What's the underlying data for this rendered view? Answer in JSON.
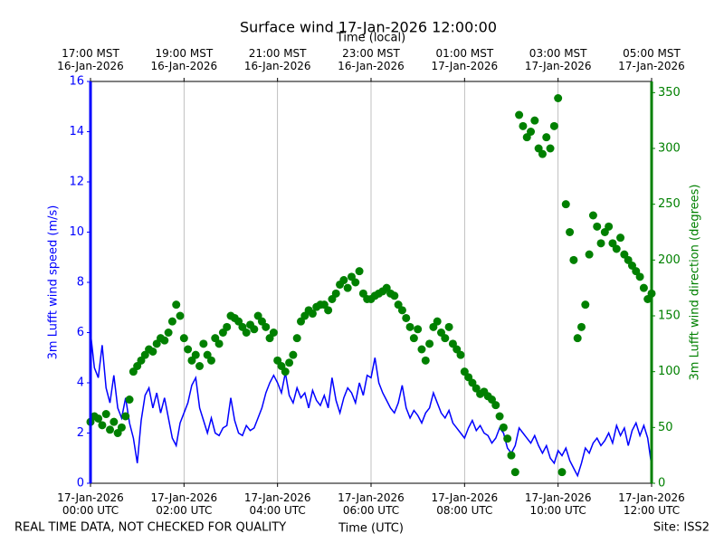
{
  "chart_data": {
    "type": "line",
    "title": "Surface wind 17-Jan-2026 12:00:00",
    "x_label": "Time (UTC)",
    "x2_label": "Time (local)",
    "y_label": "3m Lufft wind speed (m/s)",
    "y2_label": "3m Lufft wind direction (degrees)",
    "footer_left": "REAL TIME DATA, NOT CHECKED FOR QUALITY",
    "footer_right": "Site: ISS2",
    "grid": "x",
    "xlim": [
      "2026-01-17T00:00",
      "2026-01-17T12:00"
    ],
    "xticks": [
      {
        "value": "2026-01-17T00:00",
        "label": "17-Jan-2026\n00:00 UTC"
      },
      {
        "value": "2026-01-17T02:00",
        "label": "17-Jan-2026\n02:00 UTC"
      },
      {
        "value": "2026-01-17T04:00",
        "label": "17-Jan-2026\n04:00 UTC"
      },
      {
        "value": "2026-01-17T06:00",
        "label": "17-Jan-2026\n06:00 UTC"
      },
      {
        "value": "2026-01-17T08:00",
        "label": "17-Jan-2026\n08:00 UTC"
      },
      {
        "value": "2026-01-17T10:00",
        "label": "17-Jan-2026\n10:00 UTC"
      },
      {
        "value": "2026-01-17T12:00",
        "label": "17-Jan-2026\n12:00 UTC"
      }
    ],
    "x2ticks": [
      {
        "value": "2026-01-17T00:00",
        "label": "17:00 MST\n16-Jan-2026"
      },
      {
        "value": "2026-01-17T02:00",
        "label": "19:00 MST\n16-Jan-2026"
      },
      {
        "value": "2026-01-17T04:00",
        "label": "21:00 MST\n16-Jan-2026"
      },
      {
        "value": "2026-01-17T06:00",
        "label": "23:00 MST\n16-Jan-2026"
      },
      {
        "value": "2026-01-17T08:00",
        "label": "01:00 MST\n17-Jan-2026"
      },
      {
        "value": "2026-01-17T10:00",
        "label": "03:00 MST\n17-Jan-2026"
      },
      {
        "value": "2026-01-17T12:00",
        "label": "05:00 MST\n17-Jan-2026"
      }
    ],
    "ylim": [
      0,
      16
    ],
    "yticks": [
      0,
      2,
      4,
      6,
      8,
      10,
      12,
      14,
      16
    ],
    "y2lim": [
      0,
      360
    ],
    "y2ticks": [
      0,
      50,
      100,
      150,
      200,
      250,
      300,
      350
    ],
    "x": [
      "2026-01-17T00:00",
      "2026-01-17T00:05",
      "2026-01-17T00:10",
      "2026-01-17T00:15",
      "2026-01-17T00:20",
      "2026-01-17T00:25",
      "2026-01-17T00:30",
      "2026-01-17T00:35",
      "2026-01-17T00:40",
      "2026-01-17T00:45",
      "2026-01-17T00:50",
      "2026-01-17T00:55",
      "2026-01-17T01:00",
      "2026-01-17T01:05",
      "2026-01-17T01:10",
      "2026-01-17T01:15",
      "2026-01-17T01:20",
      "2026-01-17T01:25",
      "2026-01-17T01:30",
      "2026-01-17T01:35",
      "2026-01-17T01:40",
      "2026-01-17T01:45",
      "2026-01-17T01:50",
      "2026-01-17T01:55",
      "2026-01-17T02:00",
      "2026-01-17T02:05",
      "2026-01-17T02:10",
      "2026-01-17T02:15",
      "2026-01-17T02:20",
      "2026-01-17T02:25",
      "2026-01-17T02:30",
      "2026-01-17T02:35",
      "2026-01-17T02:40",
      "2026-01-17T02:45",
      "2026-01-17T02:50",
      "2026-01-17T02:55",
      "2026-01-17T03:00",
      "2026-01-17T03:05",
      "2026-01-17T03:10",
      "2026-01-17T03:15",
      "2026-01-17T03:20",
      "2026-01-17T03:25",
      "2026-01-17T03:30",
      "2026-01-17T03:35",
      "2026-01-17T03:40",
      "2026-01-17T03:45",
      "2026-01-17T03:50",
      "2026-01-17T03:55",
      "2026-01-17T04:00",
      "2026-01-17T04:05",
      "2026-01-17T04:10",
      "2026-01-17T04:15",
      "2026-01-17T04:20",
      "2026-01-17T04:25",
      "2026-01-17T04:30",
      "2026-01-17T04:35",
      "2026-01-17T04:40",
      "2026-01-17T04:45",
      "2026-01-17T04:50",
      "2026-01-17T04:55",
      "2026-01-17T05:00",
      "2026-01-17T05:05",
      "2026-01-17T05:10",
      "2026-01-17T05:15",
      "2026-01-17T05:20",
      "2026-01-17T05:25",
      "2026-01-17T05:30",
      "2026-01-17T05:35",
      "2026-01-17T05:40",
      "2026-01-17T05:45",
      "2026-01-17T05:50",
      "2026-01-17T05:55",
      "2026-01-17T06:00",
      "2026-01-17T06:05",
      "2026-01-17T06:10",
      "2026-01-17T06:15",
      "2026-01-17T06:20",
      "2026-01-17T06:25",
      "2026-01-17T06:30",
      "2026-01-17T06:35",
      "2026-01-17T06:40",
      "2026-01-17T06:45",
      "2026-01-17T06:50",
      "2026-01-17T06:55",
      "2026-01-17T07:00",
      "2026-01-17T07:05",
      "2026-01-17T07:10",
      "2026-01-17T07:15",
      "2026-01-17T07:20",
      "2026-01-17T07:25",
      "2026-01-17T07:30",
      "2026-01-17T07:35",
      "2026-01-17T07:40",
      "2026-01-17T07:45",
      "2026-01-17T07:50",
      "2026-01-17T07:55",
      "2026-01-17T08:00",
      "2026-01-17T08:05",
      "2026-01-17T08:10",
      "2026-01-17T08:15",
      "2026-01-17T08:20",
      "2026-01-17T08:25",
      "2026-01-17T08:30",
      "2026-01-17T08:35",
      "2026-01-17T08:40",
      "2026-01-17T08:45",
      "2026-01-17T08:50",
      "2026-01-17T08:55",
      "2026-01-17T09:00",
      "2026-01-17T09:05",
      "2026-01-17T09:10",
      "2026-01-17T09:15",
      "2026-01-17T09:20",
      "2026-01-17T09:25",
      "2026-01-17T09:30",
      "2026-01-17T09:35",
      "2026-01-17T09:40",
      "2026-01-17T09:45",
      "2026-01-17T09:50",
      "2026-01-17T09:55",
      "2026-01-17T10:00",
      "2026-01-17T10:05",
      "2026-01-17T10:10",
      "2026-01-17T10:15",
      "2026-01-17T10:20",
      "2026-01-17T10:25",
      "2026-01-17T10:30",
      "2026-01-17T10:35",
      "2026-01-17T10:40",
      "2026-01-17T10:45",
      "2026-01-17T10:50",
      "2026-01-17T10:55",
      "2026-01-17T11:00",
      "2026-01-17T11:05",
      "2026-01-17T11:10",
      "2026-01-17T11:15",
      "2026-01-17T11:20",
      "2026-01-17T11:25",
      "2026-01-17T11:30",
      "2026-01-17T11:35",
      "2026-01-17T11:40",
      "2026-01-17T11:45",
      "2026-01-17T11:50",
      "2026-01-17T11:55",
      "2026-01-17T12:00"
    ],
    "series": [
      {
        "type": "line",
        "color": "#0000ff",
        "axis": "y",
        "values": [
          6.0,
          4.6,
          4.2,
          5.5,
          3.8,
          3.2,
          4.3,
          3.0,
          2.6,
          3.4,
          2.4,
          1.8,
          0.8,
          2.5,
          3.5,
          3.8,
          3.0,
          3.6,
          2.8,
          3.4,
          2.6,
          1.8,
          1.5,
          2.4,
          2.8,
          3.2,
          3.9,
          4.2,
          3.0,
          2.5,
          2.0,
          2.6,
          2.0,
          1.9,
          2.2,
          2.3,
          3.4,
          2.5,
          2.0,
          1.9,
          2.3,
          2.1,
          2.2,
          2.6,
          3.0,
          3.6,
          4.0,
          4.3,
          4.0,
          3.6,
          4.4,
          3.5,
          3.2,
          3.8,
          3.4,
          3.6,
          3.0,
          3.7,
          3.3,
          3.1,
          3.5,
          3.0,
          4.2,
          3.3,
          2.8,
          3.4,
          3.8,
          3.6,
          3.2,
          4.0,
          3.5,
          4.3,
          4.2,
          5.0,
          4.0,
          3.6,
          3.3,
          3.0,
          2.8,
          3.2,
          3.9,
          3.0,
          2.6,
          2.9,
          2.7,
          2.4,
          2.8,
          3.0,
          3.6,
          3.2,
          2.8,
          2.6,
          2.9,
          2.4,
          2.2,
          2.0,
          1.8,
          2.2,
          2.5,
          2.1,
          2.3,
          2.0,
          1.9,
          1.6,
          1.8,
          2.2,
          2.0,
          1.4,
          1.2,
          1.5,
          2.2,
          2.0,
          1.8,
          1.6,
          1.9,
          1.5,
          1.2,
          1.5,
          1.0,
          0.8,
          1.3,
          1.1,
          1.4,
          0.9,
          0.6,
          0.3,
          0.8,
          1.4,
          1.2,
          1.6,
          1.8,
          1.5,
          1.7,
          2.0,
          1.6,
          2.3,
          1.9,
          2.2,
          1.5,
          2.1,
          2.4,
          1.9,
          2.3,
          1.8,
          0.7
        ]
      },
      {
        "type": "scatter",
        "color": "#008000",
        "axis": "y2",
        "values": [
          55,
          60,
          58,
          52,
          62,
          48,
          55,
          45,
          50,
          60,
          75,
          100,
          105,
          110,
          115,
          120,
          118,
          125,
          130,
          128,
          135,
          145,
          160,
          150,
          130,
          120,
          110,
          115,
          105,
          125,
          115,
          110,
          130,
          125,
          135,
          140,
          150,
          148,
          145,
          140,
          135,
          142,
          138,
          150,
          145,
          140,
          130,
          135,
          110,
          105,
          100,
          108,
          115,
          130,
          145,
          150,
          155,
          152,
          158,
          160,
          160,
          155,
          165,
          170,
          178,
          182,
          175,
          185,
          180,
          190,
          170,
          165,
          165,
          168,
          170,
          172,
          175,
          170,
          168,
          160,
          155,
          148,
          140,
          130,
          138,
          120,
          110,
          125,
          140,
          145,
          135,
          130,
          140,
          125,
          120,
          115,
          100,
          95,
          90,
          85,
          80,
          82,
          78,
          75,
          70,
          60,
          50,
          40,
          25,
          10,
          330,
          320,
          310,
          315,
          325,
          300,
          295,
          310,
          300,
          320,
          345,
          10,
          250,
          225,
          200,
          130,
          140,
          160,
          205,
          240,
          230,
          215,
          225,
          230,
          215,
          210,
          220,
          205,
          200,
          195,
          190,
          185,
          175,
          165,
          170
        ]
      }
    ]
  }
}
